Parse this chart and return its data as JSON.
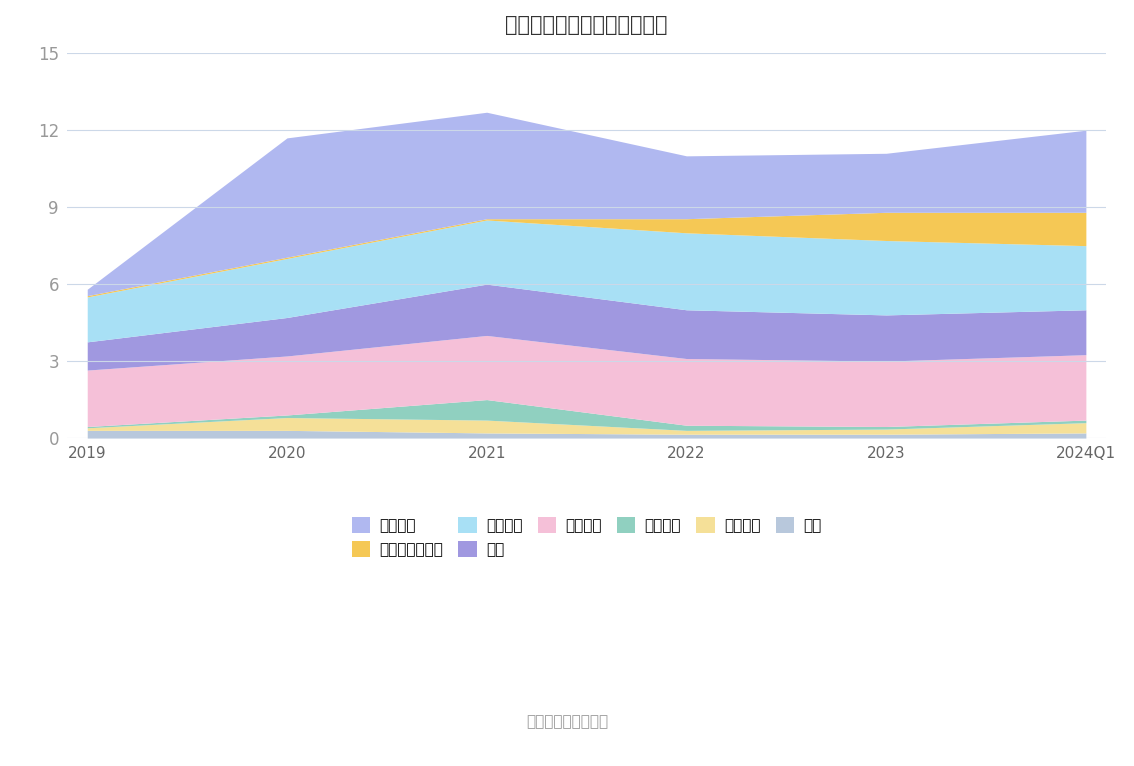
{
  "title": "历年主要资产堆积图（亿元）",
  "years": [
    "2019",
    "2020",
    "2021",
    "2022",
    "2023",
    "2024Q1"
  ],
  "series_bottom_to_top": [
    {
      "name": "其它",
      "color": "#b8c8dc",
      "values": [
        0.3,
        0.3,
        0.2,
        0.15,
        0.15,
        0.2
      ]
    },
    {
      "name": "无形资产",
      "color": "#f5e098",
      "values": [
        0.1,
        0.5,
        0.5,
        0.15,
        0.2,
        0.4
      ]
    },
    {
      "name": "在建工程",
      "color": "#90d0c0",
      "values": [
        0.05,
        0.1,
        0.8,
        0.2,
        0.1,
        0.1
      ]
    },
    {
      "name": "固定资产",
      "color": "#f5c0d8",
      "values": [
        2.2,
        2.3,
        2.5,
        2.6,
        2.55,
        2.55
      ]
    },
    {
      "name": "存货",
      "color": "#a098e0",
      "values": [
        1.1,
        1.5,
        2.0,
        1.9,
        1.8,
        1.75
      ]
    },
    {
      "name": "应收账款",
      "color": "#a8e0f5",
      "values": [
        1.75,
        2.3,
        2.5,
        3.0,
        2.9,
        2.5
      ]
    },
    {
      "name": "交易性金融资产",
      "color": "#f5c855",
      "values": [
        0.05,
        0.05,
        0.05,
        0.55,
        1.1,
        1.3
      ]
    },
    {
      "name": "货币资金",
      "color": "#b0b8f0",
      "values": [
        0.25,
        4.65,
        4.15,
        2.45,
        2.3,
        3.2
      ]
    }
  ],
  "legend_row1": [
    {
      "name": "货币资金",
      "color": "#b0b8f0"
    },
    {
      "name": "交易性金融资产",
      "color": "#f5c855"
    },
    {
      "name": "应收账款",
      "color": "#a8e0f5"
    },
    {
      "name": "存货",
      "color": "#a098e0"
    },
    {
      "name": "固定资产",
      "color": "#f5c0d8"
    },
    {
      "name": "在建工程",
      "color": "#90d0c0"
    }
  ],
  "legend_row2": [
    {
      "name": "无形资产",
      "color": "#f5e098"
    },
    {
      "name": "其它",
      "color": "#b8c8dc"
    }
  ],
  "ylim": [
    0,
    15
  ],
  "yticks": [
    0,
    3,
    6,
    9,
    12,
    15
  ],
  "source_text": "数据来源：恒生聚源",
  "bg_color": "#ffffff",
  "grid_color": "#ccd8e8"
}
